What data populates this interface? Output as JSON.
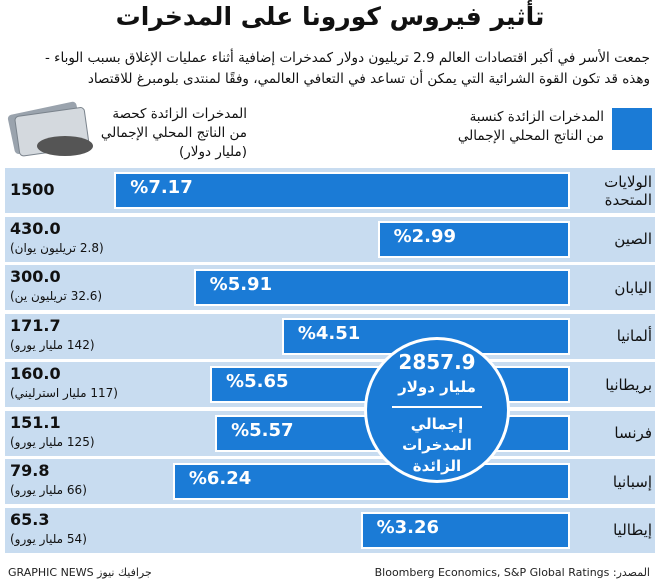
{
  "chart_data": {
    "type": "bar",
    "title": "تأثير فيروس كورونا على المدخرات",
    "subtitle_lines": [
      "جمعت الأسر في أكبر اقتصادات العالم 2.9 تريليون دولار كمدخرات إضافية أثناء عمليات الإغلاق بسبب الوباء -",
      "وهذه قد تكون القوة الشرائية التي يمكن أن تساعد في التعافي العالمي، وفقًا لمنتدى بلومبرغ للاقتصاد"
    ],
    "categories": [
      "الولايات المتحدة",
      "الصين",
      "اليابان",
      "ألمانيا",
      "بريطانيا",
      "فرنسا",
      "إسبانيا",
      "إيطاليا"
    ],
    "series": [
      {
        "name": "المدخرات الزائدة كنسبة من الناتج المحلي الإجمالي",
        "color": "#1b7bd6",
        "values": [
          7.17,
          2.99,
          5.91,
          4.51,
          5.65,
          5.57,
          6.24,
          3.26
        ],
        "value_labels": [
          "%7.17",
          "%2.99",
          "%5.91",
          "%4.51",
          "%5.65",
          "%5.57",
          "%6.24",
          "%3.26"
        ]
      }
    ],
    "savings_usd": {
      "name": "المدخرات الزائدة كحصة من الناتج المحلي الإجمالي (مليار دولار)",
      "values": [
        1500,
        430,
        300,
        171.7,
        160,
        151.1,
        79.8,
        65.3
      ],
      "value_labels": [
        "1500",
        "430.0",
        "300.0",
        "171.7",
        "160.0",
        "151.1",
        "79.8",
        "65.3"
      ],
      "local_currency": [
        null,
        "(2.8 تريليون يوان)",
        "(32.6 تريليون ين)",
        "(142 مليار يورو)",
        "(117 مليار استرليني)",
        "(125 مليار يورو)",
        "(66 مليار يورو)",
        "(54 مليار يورو)"
      ]
    },
    "total": {
      "value": 2857.9,
      "unit": "مليار دولار",
      "label": "إجمالي المدخرات الزائدة"
    },
    "source": "المصدر: Bloomberg Economics, S&P Global Ratings",
    "credit": "GRAPHIC NEWS جرافيك نيوز"
  }
}
